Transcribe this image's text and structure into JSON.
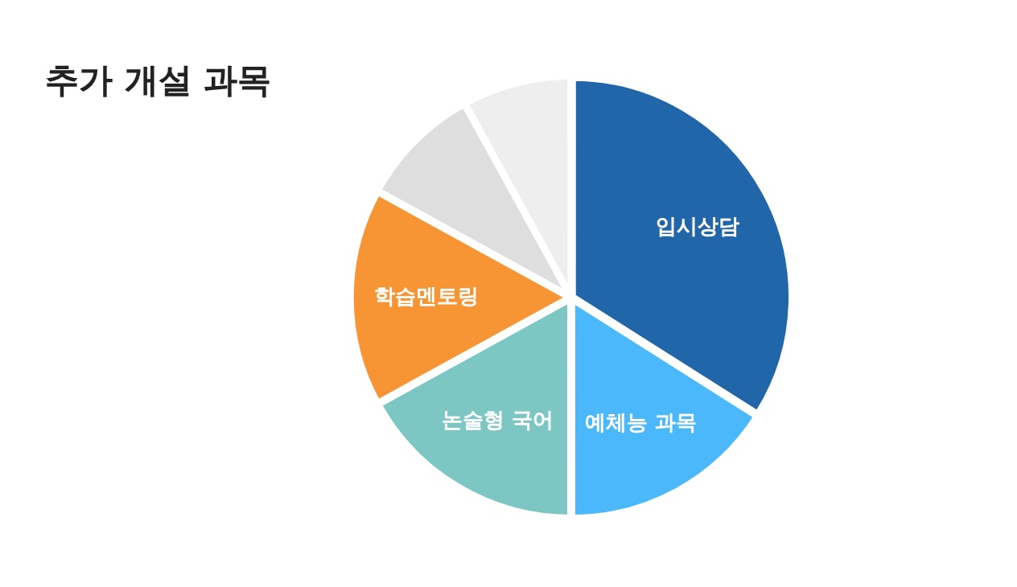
{
  "chart_data": {
    "type": "pie",
    "title": "추가 개설 과목",
    "categories": [
      "입시상담",
      "예체능 과목",
      "논술형 국어",
      "학습멘토링",
      null,
      null
    ],
    "values": [
      34,
      16,
      17,
      16,
      9,
      8
    ],
    "colors": [
      "#2166a8",
      "#4ab8fb",
      "#7cc6c4",
      "#f79433",
      "#dedede",
      "#eeeeee"
    ],
    "legend": false
  }
}
